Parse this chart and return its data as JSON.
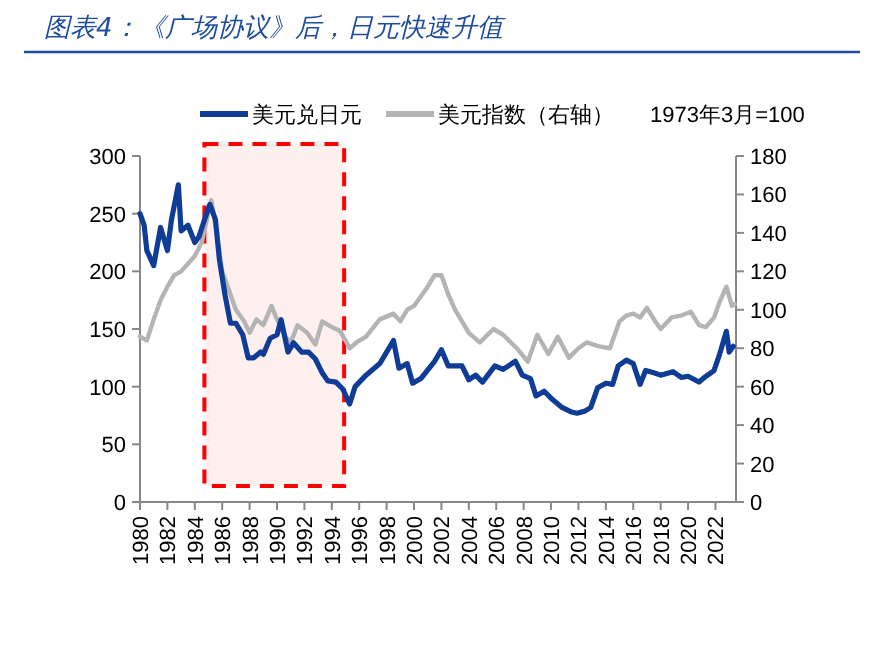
{
  "chart_data": {
    "type": "line",
    "title": "图表4：《广场协议》后，日元快速升值",
    "annotations": [
      "1973年3月=100"
    ],
    "legend": "top",
    "marker": "none",
    "line_style": "solid",
    "grid": false,
    "xlim": [
      1980,
      2023.5
    ],
    "xticks": [
      1980,
      1982,
      1984,
      1986,
      1988,
      1990,
      1992,
      1994,
      1996,
      1998,
      2000,
      2002,
      2004,
      2006,
      2008,
      2010,
      2012,
      2014,
      2016,
      2018,
      2020,
      2022
    ],
    "ylim": [
      0,
      300
    ],
    "yticks": [
      0,
      50,
      100,
      150,
      200,
      250,
      300
    ],
    "y2lim": [
      0,
      180
    ],
    "y2ticks": [
      0,
      20,
      40,
      60,
      80,
      100,
      120,
      140,
      160,
      180
    ],
    "bands": [
      {
        "axis": "x",
        "from": 1984.7,
        "to": 1994.9,
        "color": "#ff0000"
      }
    ],
    "series": [
      {
        "name": "美元兑日元",
        "color": "#0f3c96",
        "x": [
          1980.0,
          1980.3,
          1980.5,
          1981,
          1981.5,
          1982.0,
          1982.3,
          1982.8,
          1983.0,
          1983.5,
          1984,
          1984.3,
          1984.8,
          1985.1,
          1985.5,
          1985.8,
          1986.2,
          1986.6,
          1987.0,
          1987.5,
          1987.9,
          1988.3,
          1988.8,
          1989.0,
          1989.5,
          1990.0,
          1990.3,
          1990.8,
          1991.2,
          1991.8,
          1992.3,
          1992.8,
          1993.3,
          1993.7,
          1994.3,
          1994.8,
          1995.3,
          1995.7,
          1996.5,
          1997.5,
          1998.5,
          1998.9,
          1999.5,
          1999.9,
          2000.5,
          2001.5,
          2002.0,
          2002.5,
          2003.5,
          2004.0,
          2004.5,
          2005.0,
          2005.9,
          2006.5,
          2007.4,
          2007.9,
          2008.5,
          2008.9,
          2009.5,
          2010.0,
          2010.8,
          2011.5,
          2011.9,
          2012.5,
          2012.9,
          2013.4,
          2014.0,
          2014.5,
          2014.9,
          2015.5,
          2016.0,
          2016.5,
          2016.9,
          2017.5,
          2018.0,
          2018.9,
          2019.5,
          2020.0,
          2020.8,
          2021.3,
          2021.9,
          2022.3,
          2022.8,
          2023.0,
          2023.3
        ],
        "values": [
          250,
          240,
          218,
          205,
          238,
          218,
          245,
          275,
          235,
          240,
          225,
          230,
          248,
          258,
          245,
          210,
          180,
          155,
          155,
          145,
          125,
          125,
          130,
          128,
          142,
          145,
          158,
          130,
          138,
          130,
          130,
          124,
          112,
          105,
          104,
          98,
          85,
          100,
          110,
          120,
          140,
          116,
          120,
          103,
          107,
          122,
          132,
          118,
          118,
          106,
          110,
          104,
          118,
          115,
          122,
          110,
          107,
          92,
          96,
          90,
          82,
          78,
          77,
          79,
          82,
          99,
          103,
          102,
          118,
          123,
          120,
          102,
          114,
          112,
          110,
          113,
          108,
          109,
          104,
          109,
          114,
          128,
          148,
          130,
          135
        ]
      },
      {
        "name": "美元指数（右轴）",
        "axis": "y2",
        "color": "#b4b4b4",
        "x": [
          1980,
          1980.5,
          1981,
          1981.5,
          1982,
          1982.5,
          1983,
          1984,
          1984.5,
          1985.2,
          1985.5,
          1986,
          1986.5,
          1987,
          1987.6,
          1988.0,
          1988.5,
          1989,
          1989.6,
          1990,
          1990.6,
          1991,
          1991.5,
          1992.2,
          1992.8,
          1993.3,
          1994,
          1994.6,
          1995.0,
          1995.3,
          1995.8,
          1996.5,
          1997.5,
          1998.5,
          1999,
          1999.5,
          2000,
          2001.0,
          2001.5,
          2002.0,
          2002.5,
          2003,
          2004,
          2004.8,
          2005.8,
          2006.5,
          2007.5,
          2008.3,
          2009.0,
          2009.8,
          2010.5,
          2011.3,
          2012.0,
          2012.6,
          2013.5,
          2014.3,
          2015.0,
          2015.5,
          2016.0,
          2016.5,
          2017.0,
          2017.6,
          2018.0,
          2018.8,
          2019.5,
          2020.2,
          2020.8,
          2021.3,
          2021.9,
          2022.3,
          2022.8,
          2023.2,
          2023.4
        ],
        "values": [
          86,
          84,
          95,
          105,
          112,
          118,
          120,
          128,
          135,
          157,
          145,
          120,
          110,
          100,
          94,
          88,
          95,
          92,
          102,
          95,
          86,
          83,
          92,
          88,
          82,
          94,
          91,
          89,
          84,
          80,
          83,
          86,
          95,
          98,
          94,
          100,
          102,
          112,
          118,
          118,
          108,
          100,
          88,
          83,
          90,
          87,
          80,
          73,
          87,
          77,
          86,
          75,
          80,
          83,
          81,
          80,
          94,
          97,
          98,
          96,
          101,
          94,
          90,
          96,
          97,
          99,
          92,
          91,
          96,
          104,
          112,
          102,
          103
        ]
      }
    ]
  }
}
